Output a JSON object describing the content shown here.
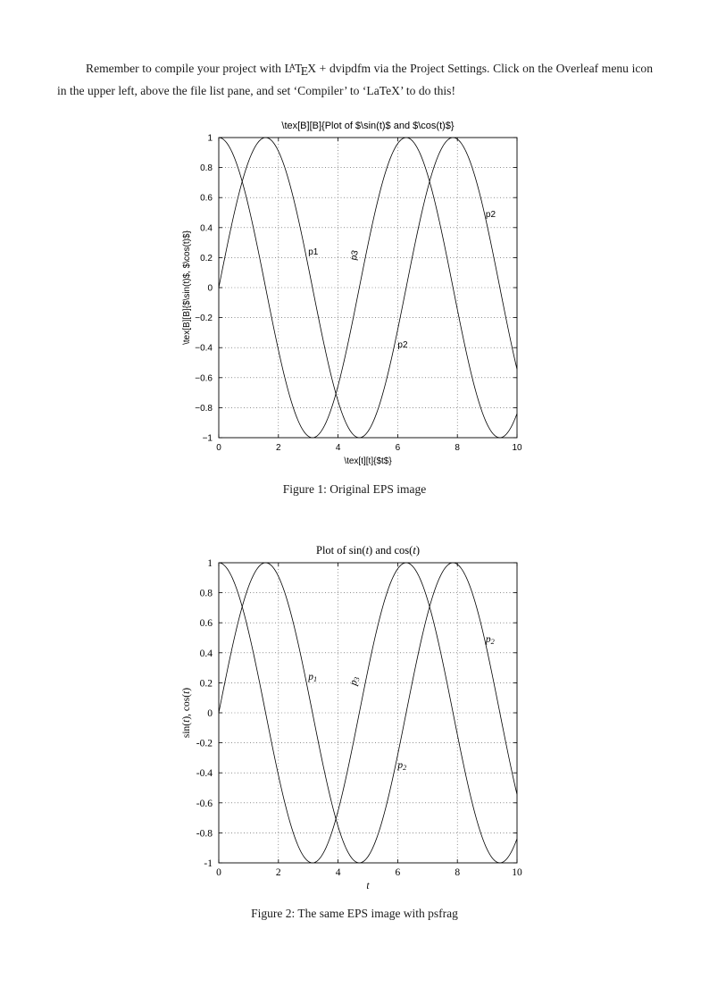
{
  "paragraph": {
    "before": "Remember to compile your project with ",
    "latex_logo": "LaTeX",
    "after": " + dvipdfm via the Project Settings. Click on the Overleaf menu icon in the upper left, above the file list pane, and set ‘Compiler’ to ‘LaTeX’ to do this!"
  },
  "figures": [
    {
      "caption": "Figure 1: Original EPS image"
    },
    {
      "caption": "Figure 2: The same EPS image with psfrag"
    }
  ],
  "chart_data": [
    {
      "type": "line",
      "font": "sans",
      "title": "\\tex[B][B]{Plot of $\\sin(t)$ and $\\cos(t)$}",
      "title_segments": [
        {
          "t": "\\tex[B][B]{Plot of $\\sin(t)$ and $\\cos(t)$}"
        }
      ],
      "xlabel": "\\tex[t][t]{$t$}",
      "xlabel_segments": [
        {
          "t": "\\tex[t][t]{$t$}"
        }
      ],
      "ylabel": "\\tex[B][B]{$\\sin(t)$, $\\cos(t)$}",
      "ylabel_segments": [
        {
          "t": "\\tex[B][B]{$\\sin(t)$, $\\cos(t)$}"
        }
      ],
      "xlim": [
        0,
        10
      ],
      "ylim": [
        -1,
        1
      ],
      "xticks": [
        0,
        2,
        4,
        6,
        8,
        10
      ],
      "xtick_labels": [
        "0",
        "2",
        "4",
        "6",
        "8",
        "10"
      ],
      "yticks": [
        1,
        0.8,
        0.6,
        0.4,
        0.2,
        0,
        -0.2,
        -0.4,
        -0.6,
        -0.8,
        -1
      ],
      "ytick_labels": [
        "1",
        "0.8",
        "0.6",
        "0.4",
        "0.2",
        "0",
        "−0.2",
        "−0.4",
        "−0.6",
        "−0.8",
        "−1"
      ],
      "grid": true,
      "x_range": {
        "start": 0,
        "end": 10,
        "step": 0.05
      },
      "series": [
        {
          "name": "sin(t)",
          "fn": "sin"
        },
        {
          "name": "cos(t)",
          "fn": "cos"
        }
      ],
      "annotations": [
        {
          "x": 3.0,
          "y": 0.22,
          "rotate": 0,
          "segments": [
            {
              "t": "p1"
            }
          ]
        },
        {
          "x": 4.6,
          "y": 0.18,
          "rotate": -78,
          "segments": [
            {
              "t": "p3"
            }
          ]
        },
        {
          "x": 6.0,
          "y": -0.4,
          "rotate": 0,
          "segments": [
            {
              "t": "p2"
            }
          ]
        },
        {
          "x": 8.95,
          "y": 0.47,
          "rotate": 0,
          "segments": [
            {
              "t": "p2"
            }
          ]
        }
      ]
    },
    {
      "type": "line",
      "font": "serif",
      "title": "Plot of sin(t) and cos(t)",
      "title_segments": [
        {
          "t": "Plot of sin("
        },
        {
          "t": "t",
          "i": true
        },
        {
          "t": ") and cos("
        },
        {
          "t": "t",
          "i": true
        },
        {
          "t": ")"
        }
      ],
      "xlabel": "t",
      "xlabel_segments": [
        {
          "t": "t",
          "i": true
        }
      ],
      "ylabel": "sin(t), cos(t)",
      "ylabel_segments": [
        {
          "t": "sin("
        },
        {
          "t": "t",
          "i": true
        },
        {
          "t": "), cos("
        },
        {
          "t": "t",
          "i": true
        },
        {
          "t": ")"
        }
      ],
      "xlim": [
        0,
        10
      ],
      "ylim": [
        -1,
        1
      ],
      "xticks": [
        0,
        2,
        4,
        6,
        8,
        10
      ],
      "xtick_labels": [
        "0",
        "2",
        "4",
        "6",
        "8",
        "10"
      ],
      "yticks": [
        1,
        0.8,
        0.6,
        0.4,
        0.2,
        0,
        -0.2,
        -0.4,
        -0.6,
        -0.8,
        -1
      ],
      "ytick_labels": [
        "1",
        "0.8",
        "0.6",
        "0.4",
        "0.2",
        "0",
        "-0.2",
        "-0.4",
        "-0.6",
        "-0.8",
        "-1"
      ],
      "grid": true,
      "x_range": {
        "start": 0,
        "end": 10,
        "step": 0.05
      },
      "series": [
        {
          "name": "sin(t)",
          "fn": "sin"
        },
        {
          "name": "cos(t)",
          "fn": "cos"
        }
      ],
      "annotations": [
        {
          "x": 3.0,
          "y": 0.22,
          "rotate": 0,
          "segments": [
            {
              "t": "p",
              "i": true
            },
            {
              "t": "1",
              "i": true,
              "sub": true
            }
          ]
        },
        {
          "x": 4.6,
          "y": 0.18,
          "rotate": -78,
          "segments": [
            {
              "t": "p",
              "i": true
            },
            {
              "t": "3",
              "i": true,
              "sub": true
            }
          ]
        },
        {
          "x": 6.0,
          "y": -0.37,
          "rotate": 0,
          "segments": [
            {
              "t": "p",
              "i": true
            },
            {
              "t": "2",
              "i": true,
              "sub": true
            }
          ]
        },
        {
          "x": 8.95,
          "y": 0.47,
          "rotate": 0,
          "segments": [
            {
              "t": "p",
              "i": true
            },
            {
              "t": "2",
              "i": true,
              "sub": true
            }
          ]
        }
      ]
    }
  ]
}
